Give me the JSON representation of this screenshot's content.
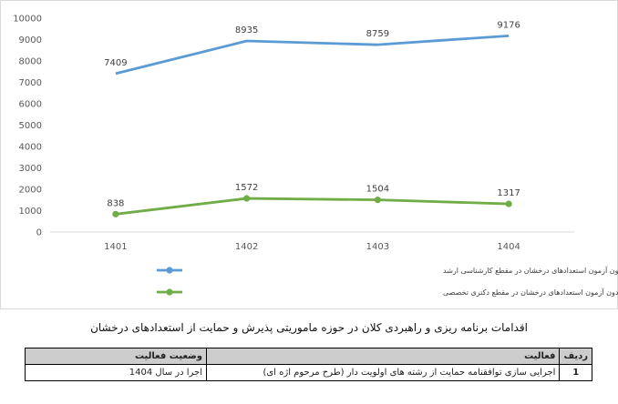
{
  "chart_data": {
    "type": "line",
    "categories": [
      "1401",
      "1402",
      "1403",
      "1404"
    ],
    "ylim": [
      0,
      10000
    ],
    "yticks": [
      "0",
      "1000",
      "2000",
      "3000",
      "4000",
      "5000",
      "6000",
      "7000",
      "8000",
      "9000",
      "10000"
    ],
    "grid": false,
    "legend_position": "bottom",
    "series": [
      {
        "name": "تعداد کل پذیرش بدون آزمون استعدادهای درخشان در مقطع کارشناسی ارشد",
        "values": [
          7409,
          8935,
          8759,
          9176
        ],
        "labels": [
          "7409",
          "8935",
          "8759",
          "9176"
        ],
        "color": "#5B9BD5"
      },
      {
        "name": "تعداد کل پذیرش بدون آزمون استعدادهای درخشان در مقطع دکتری تخصصی",
        "values": [
          838,
          1572,
          1504,
          1317
        ],
        "labels": [
          "838",
          "1572",
          "1504",
          "1317"
        ],
        "color": "#70AD47"
      }
    ]
  },
  "caption": "اقدامات برنامه ریزی و راهبردی کلان در حوزه ماموریتی پذیرش و حمایت از استعدادهای درخشان",
  "table": {
    "headers": {
      "num": "ردیف",
      "activity": "فعالیت",
      "status": "وضعیت فعالیت"
    },
    "rows": [
      {
        "num": "1",
        "activity": "اجرایی سازی توافقنامه حمایت از رشته های اولویت دار (طرح مرحوم اژه ای)",
        "status": "اجرا در سال 1404"
      }
    ]
  }
}
